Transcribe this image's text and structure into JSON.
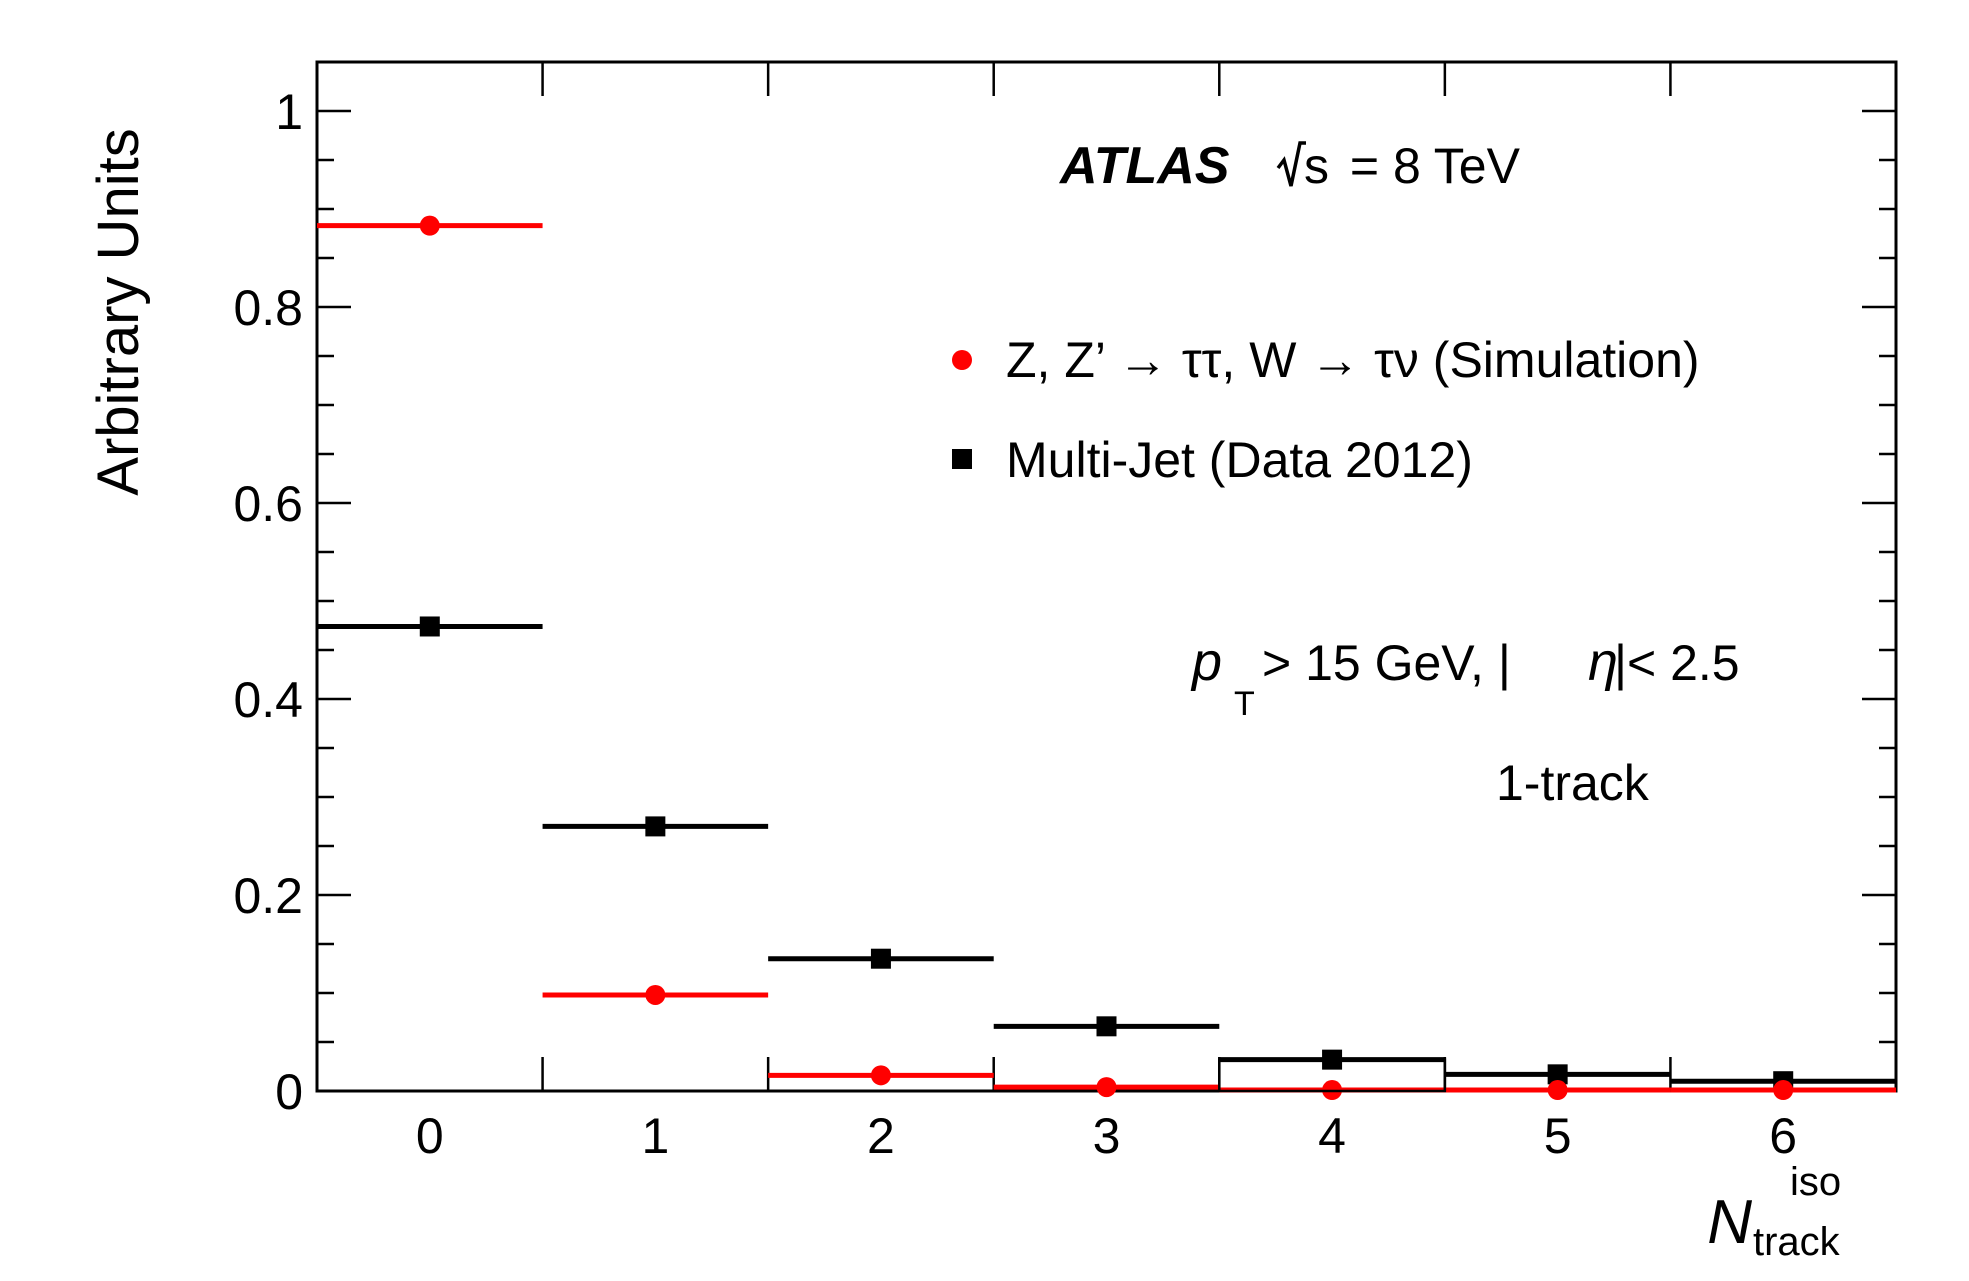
{
  "chart_data": {
    "type": "scatter",
    "title": "",
    "ylabel": "Arbitrary Units",
    "xlabel": {
      "main": "N",
      "superscript": "iso",
      "subscript": "track"
    },
    "xlim": [
      -0.5,
      6.5
    ],
    "ylim": [
      0,
      1.05
    ],
    "x_ticks": [
      "0",
      "1",
      "2",
      "3",
      "4",
      "5",
      "6"
    ],
    "y_ticks": [
      "0",
      "0.2",
      "0.4",
      "0.6",
      "0.8",
      "1"
    ],
    "grid": false,
    "legend_position": "top-right",
    "x": [
      0,
      1,
      2,
      3,
      4,
      5,
      6
    ],
    "series": [
      {
        "name": "Z, Z’ → ττ, W → τν (Simulation)",
        "marker": "circle",
        "color": "#ff0000",
        "values": [
          0.883,
          0.098,
          0.016,
          0.004,
          0.001,
          0.001,
          0.001
        ],
        "x_halfwidth": 0.5
      },
      {
        "name": "Multi-Jet (Data 2012)",
        "marker": "square",
        "color": "#000000",
        "values": [
          0.474,
          0.27,
          0.135,
          0.066,
          0.032,
          0.017,
          0.01
        ],
        "x_halfwidth": 0.5
      }
    ],
    "annotations": {
      "experiment": "ATLAS",
      "energy_root": "s",
      "energy_value": " = 8 TeV",
      "cut_p": "p",
      "cut_sub": "T",
      "cut_rest_1": "> 15 GeV, |",
      "cut_eta": "η",
      "cut_rest_2": "|< 2.5",
      "category": "1-track"
    }
  }
}
